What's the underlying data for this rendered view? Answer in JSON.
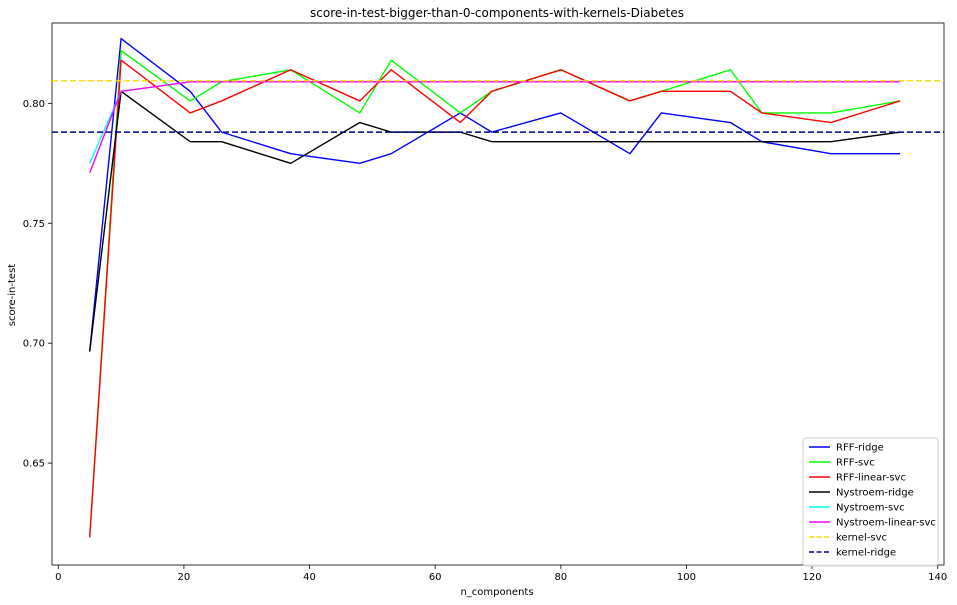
{
  "chart_data": {
    "type": "line",
    "title": "score-in-test-bigger-than-0-components-with-kernels-Diabetes",
    "xlabel": "n_components",
    "ylabel": "score-in-test",
    "xlim": [
      -1,
      141
    ],
    "ylim": [
      0.6075,
      0.8335
    ],
    "xticks": [
      0,
      20,
      40,
      60,
      80,
      100,
      120,
      140
    ],
    "yticks": [
      0.65,
      0.7,
      0.75,
      0.8
    ],
    "ytick_labels": [
      "0.65",
      "0.70",
      "0.75",
      "0.80"
    ],
    "grid": false,
    "legend_position": "bottom-right",
    "x": [
      5,
      10,
      21,
      26,
      37,
      48,
      53,
      64,
      69,
      80,
      91,
      96,
      107,
      112,
      123,
      134
    ],
    "series": [
      {
        "name": "RFF-ridge",
        "color": "#0000ff",
        "dash": "solid",
        "values": [
          0.6965,
          0.827,
          0.805,
          0.788,
          0.779,
          0.775,
          0.779,
          0.796,
          0.788,
          0.796,
          0.779,
          0.796,
          0.792,
          0.784,
          0.779,
          0.779
        ]
      },
      {
        "name": "RFF-svc",
        "color": "#00ff00",
        "dash": "solid",
        "values": [
          0.619,
          0.822,
          0.801,
          0.809,
          0.814,
          0.796,
          0.818,
          0.796,
          0.805,
          0.814,
          0.801,
          0.805,
          0.814,
          0.796,
          0.796,
          0.801
        ]
      },
      {
        "name": "RFF-linear-svc",
        "color": "#ff0000",
        "dash": "solid",
        "values": [
          0.619,
          0.818,
          0.796,
          0.801,
          0.814,
          0.801,
          0.814,
          0.792,
          0.805,
          0.814,
          0.801,
          0.805,
          0.805,
          0.796,
          0.792,
          0.801
        ]
      },
      {
        "name": "Nystroem-ridge",
        "color": "#000000",
        "dash": "solid",
        "values": [
          0.6965,
          0.805,
          0.784,
          0.784,
          0.775,
          0.792,
          0.788,
          0.788,
          0.784,
          0.784,
          0.784,
          0.784,
          0.784,
          0.784,
          0.784,
          0.788
        ]
      },
      {
        "name": "Nystroem-svc",
        "color": "#00ffff",
        "dash": "solid",
        "values": [
          0.775,
          0.805,
          0.809,
          0.809,
          0.809,
          0.809,
          0.809,
          0.809,
          0.809,
          0.809,
          0.809,
          0.809,
          0.809,
          0.809,
          0.809,
          0.809
        ]
      },
      {
        "name": "Nystroem-linear-svc",
        "color": "#ff00ff",
        "dash": "solid",
        "values": [
          0.771,
          0.805,
          0.809,
          0.809,
          0.809,
          0.809,
          0.809,
          0.809,
          0.809,
          0.809,
          0.809,
          0.809,
          0.809,
          0.809,
          0.809,
          0.809
        ]
      },
      {
        "name": "kernel-svc",
        "color": "#ffd700",
        "dash": "dashed",
        "constant": 0.8094,
        "span": "full"
      },
      {
        "name": "kernel-ridge",
        "color": "#00008b",
        "dash": "dashed",
        "constant": 0.788,
        "span": "full"
      }
    ]
  }
}
